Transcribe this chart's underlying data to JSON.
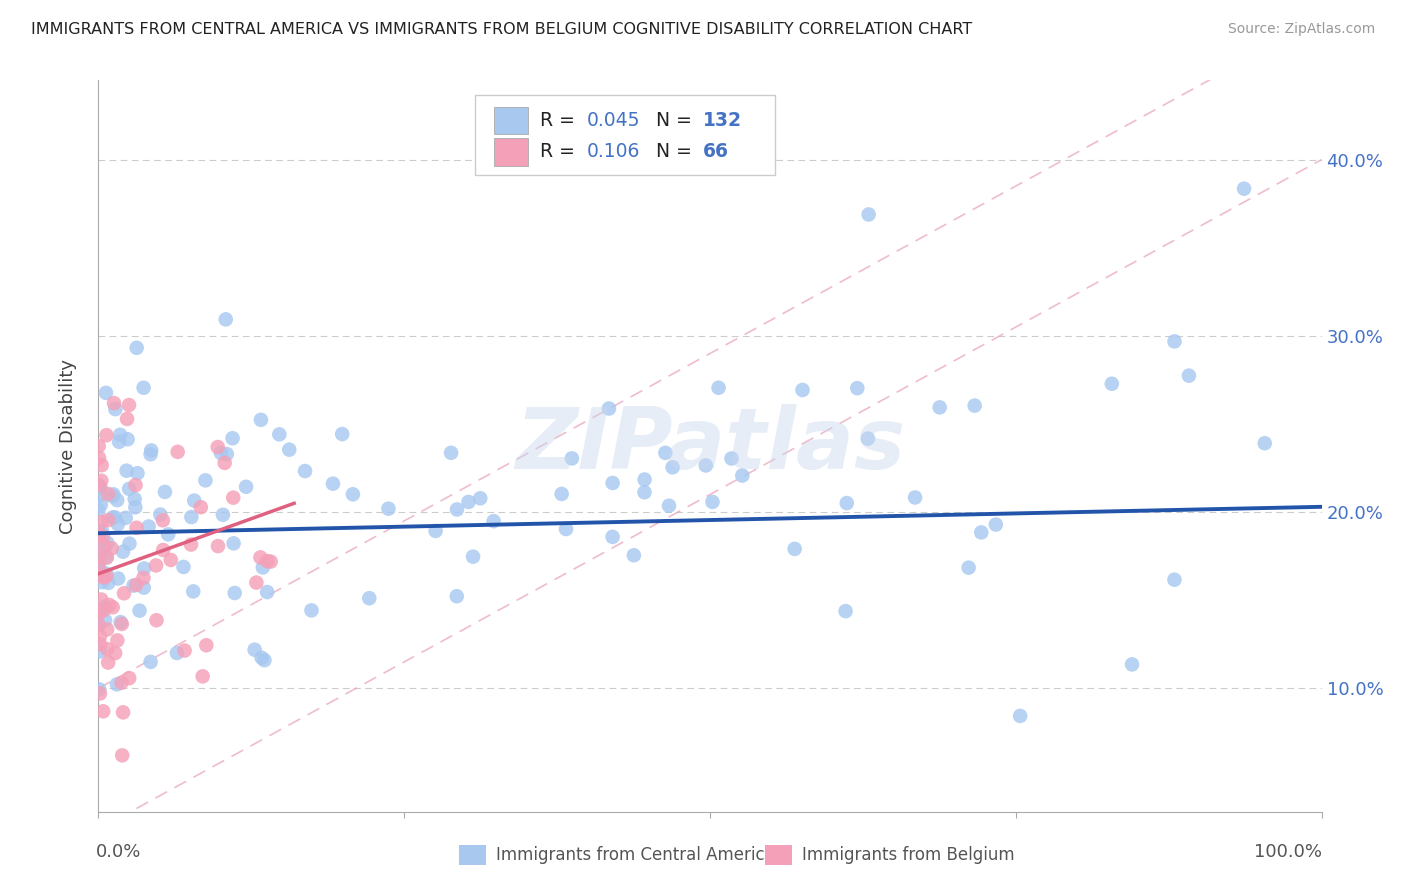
{
  "title": "IMMIGRANTS FROM CENTRAL AMERICA VS IMMIGRANTS FROM BELGIUM COGNITIVE DISABILITY CORRELATION CHART",
  "source": "Source: ZipAtlas.com",
  "ylabel": "Cognitive Disability",
  "y_ticks": [
    0.1,
    0.2,
    0.3,
    0.4
  ],
  "y_tick_labels": [
    "10.0%",
    "20.0%",
    "30.0%",
    "40.0%"
  ],
  "x_min": 0.0,
  "x_max": 1.0,
  "y_min": 0.03,
  "y_max": 0.445,
  "legend_blue_r": "0.045",
  "legend_blue_n": "132",
  "legend_pink_r": "0.106",
  "legend_pink_n": "66",
  "legend_label_blue": "Immigrants from Central America",
  "legend_label_pink": "Immigrants from Belgium",
  "blue_color": "#a8c8f0",
  "pink_color": "#f4a0b8",
  "blue_line_color": "#2255aa",
  "pink_line_color": "#e06080",
  "pink_dash_color": "#e8a0b8",
  "watermark": "ZIPatlas",
  "background_color": "#ffffff",
  "text_color_blue": "#4472c4",
  "grid_color": "#cccccc"
}
